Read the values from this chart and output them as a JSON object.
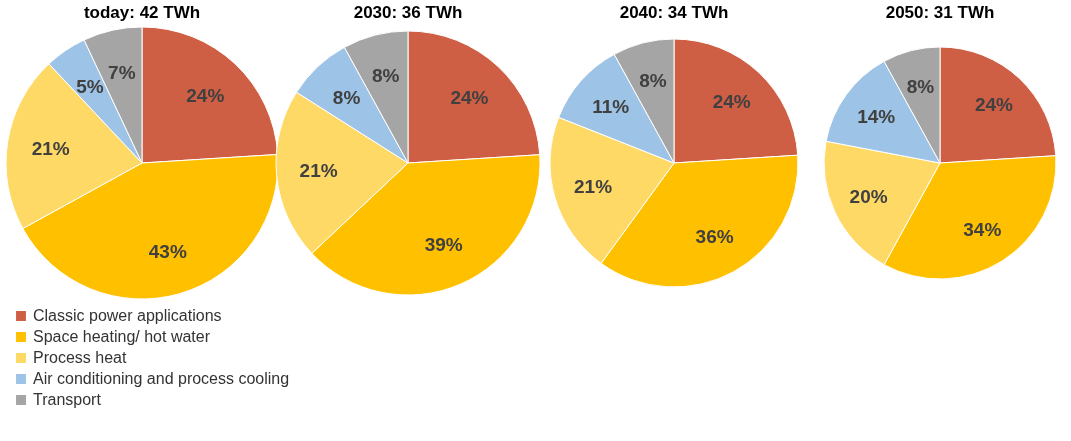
{
  "chart_data": [
    {
      "type": "pie",
      "title": "today: 42 TWh",
      "categories": [
        "Classic power applications",
        "Space heating/ hot water",
        "Process heat",
        "Air conditioning and process cooling",
        "Transport"
      ],
      "values": [
        24,
        43,
        21,
        5,
        7
      ],
      "value_labels": [
        "24%",
        "43%",
        "21%",
        "5%",
        "7%"
      ],
      "colors": [
        "#cf5f44",
        "#ffc000",
        "#ffd966",
        "#9dc3e6",
        "#a5a5a5"
      ],
      "legend": "bottom left"
    },
    {
      "type": "pie",
      "title": "2030: 36 TWh",
      "categories": [
        null,
        null,
        null,
        null,
        null
      ],
      "values": [
        24,
        39,
        21,
        8,
        8
      ],
      "value_labels": [
        "24%",
        "39%",
        "21%",
        "8%",
        "8%"
      ],
      "colors": [
        "#cf5f44",
        "#ffc000",
        "#ffd966",
        "#9dc3e6",
        "#a5a5a5"
      ]
    },
    {
      "type": "pie",
      "title": "2040: 34 TWh",
      "categories": [
        null,
        null,
        null,
        null,
        null
      ],
      "values": [
        24,
        36,
        21,
        11,
        8
      ],
      "value_labels": [
        "24%",
        "36%",
        "21%",
        "11%",
        "8%"
      ],
      "colors": [
        "#cf5f44",
        "#ffc000",
        "#ffd966",
        "#9dc3e6",
        "#a5a5a5"
      ]
    },
    {
      "type": "pie",
      "title": "2050: 31 TWh",
      "categories": [
        null,
        null,
        null,
        null,
        null
      ],
      "values": [
        24,
        34,
        20,
        14,
        8
      ],
      "value_labels": [
        "24%",
        "34%",
        "20%",
        "14%",
        "8%"
      ],
      "colors": [
        "#cf5f44",
        "#ffc000",
        "#ffd966",
        "#9dc3e6",
        "#a5a5a5"
      ]
    }
  ]
}
